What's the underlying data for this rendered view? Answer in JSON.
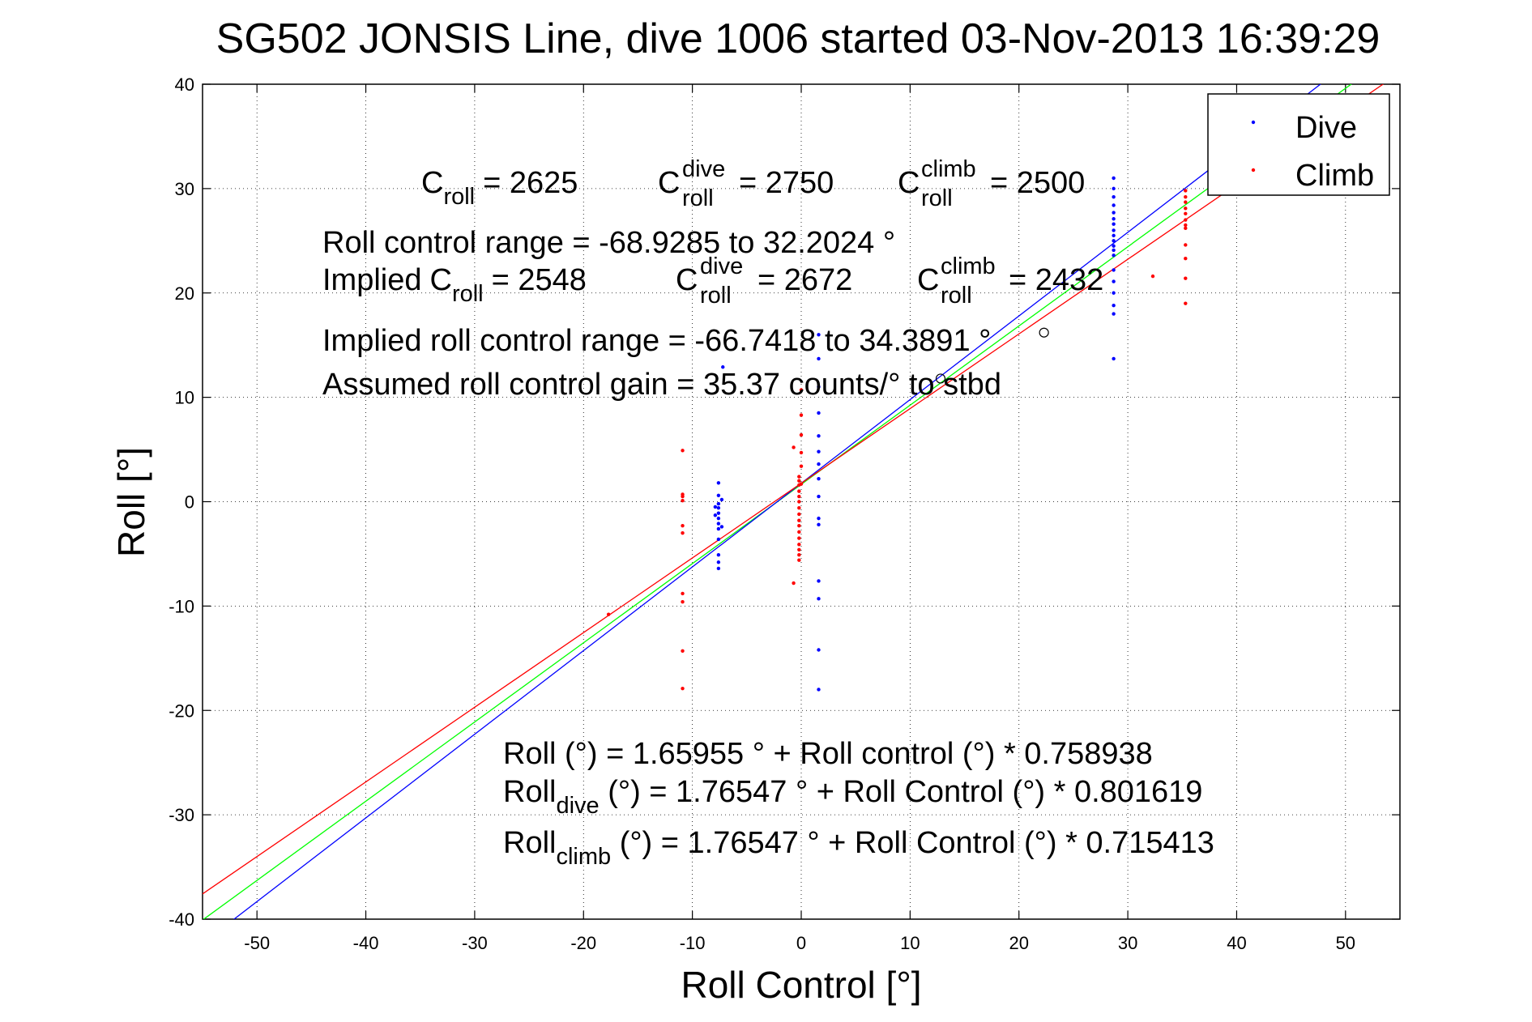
{
  "chart_data": {
    "type": "scatter",
    "title": "SG502 JONSIS Line, dive 1006 started 03-Nov-2013 16:39:29",
    "xlabel": "Roll Control [°]",
    "ylabel": "Roll [°]",
    "xlim": [
      -55,
      55
    ],
    "ylim": [
      -40,
      40
    ],
    "xticks": [
      -50,
      -40,
      -30,
      -20,
      -10,
      0,
      10,
      20,
      30,
      40,
      50
    ],
    "yticks": [
      -40,
      -30,
      -20,
      -10,
      0,
      10,
      20,
      30,
      40
    ],
    "grid": "dotted",
    "legend_position": "top-right",
    "legend": [
      {
        "label": "Dive",
        "color": "#0000ff"
      },
      {
        "label": "Climb",
        "color": "#ff0000"
      }
    ],
    "series": [
      {
        "name": "Dive",
        "color": "#0000ff",
        "points": [
          [
            -7.6,
            1.8
          ],
          [
            -7.6,
            0.6
          ],
          [
            -7.6,
            -0.2
          ],
          [
            -7.6,
            -0.6
          ],
          [
            -7.6,
            -1.1
          ],
          [
            -7.6,
            -1.6
          ],
          [
            -7.6,
            -2.1
          ],
          [
            -7.6,
            -2.6
          ],
          [
            -7.6,
            -3.6
          ],
          [
            -7.6,
            -5.1
          ],
          [
            -7.6,
            -5.8
          ],
          [
            -7.6,
            -6.4
          ],
          [
            -7.9,
            -0.5
          ],
          [
            -7.9,
            -1.3
          ],
          [
            -7.3,
            0.2
          ],
          [
            -7.3,
            -2.4
          ],
          [
            -7.2,
            12.9
          ],
          [
            1.6,
            16.0
          ],
          [
            1.6,
            13.7
          ],
          [
            1.6,
            11.0
          ],
          [
            1.6,
            8.5
          ],
          [
            1.6,
            6.3
          ],
          [
            1.6,
            4.8
          ],
          [
            1.6,
            3.6
          ],
          [
            1.6,
            2.2
          ],
          [
            1.6,
            0.5
          ],
          [
            1.6,
            -1.6
          ],
          [
            1.6,
            -2.2
          ],
          [
            1.6,
            -7.6
          ],
          [
            1.6,
            -9.3
          ],
          [
            1.6,
            -14.2
          ],
          [
            1.6,
            -18.0
          ],
          [
            28.7,
            31.0
          ],
          [
            28.7,
            30.0
          ],
          [
            28.7,
            29.2
          ],
          [
            28.7,
            28.4
          ],
          [
            28.7,
            27.7
          ],
          [
            28.7,
            27.1
          ],
          [
            28.7,
            26.6
          ],
          [
            28.7,
            26.0
          ],
          [
            28.7,
            25.5
          ],
          [
            28.7,
            25.0
          ],
          [
            28.7,
            24.5
          ],
          [
            28.7,
            24.1
          ],
          [
            28.7,
            23.6
          ],
          [
            28.7,
            22.2
          ],
          [
            28.7,
            21.1
          ],
          [
            28.7,
            20.0
          ],
          [
            28.7,
            18.8
          ],
          [
            28.7,
            18.0
          ],
          [
            28.7,
            13.7
          ]
        ]
      },
      {
        "name": "Climb",
        "color": "#ff0000",
        "points": [
          [
            -17.7,
            -10.8
          ],
          [
            -10.9,
            4.9
          ],
          [
            -10.9,
            0.7
          ],
          [
            -10.9,
            0.5
          ],
          [
            -10.9,
            0.1
          ],
          [
            -10.9,
            -2.3
          ],
          [
            -10.9,
            -3.0
          ],
          [
            -10.9,
            -8.8
          ],
          [
            -10.9,
            -9.6
          ],
          [
            -10.9,
            -14.3
          ],
          [
            -10.9,
            -17.9
          ],
          [
            -0.7,
            5.2
          ],
          [
            -0.7,
            -7.8
          ],
          [
            -0.2,
            2.4
          ],
          [
            -0.2,
            2.0
          ],
          [
            -0.2,
            1.6
          ],
          [
            -0.2,
            1.0
          ],
          [
            -0.2,
            0.5
          ],
          [
            -0.2,
            0.0
          ],
          [
            -0.2,
            -0.6
          ],
          [
            -0.2,
            -1.2
          ],
          [
            -0.2,
            -1.8
          ],
          [
            -0.2,
            -2.3
          ],
          [
            -0.2,
            -2.9
          ],
          [
            -0.2,
            -3.5
          ],
          [
            -0.2,
            -4.1
          ],
          [
            -0.2,
            -4.6
          ],
          [
            -0.2,
            -5.1
          ],
          [
            -0.2,
            -5.6
          ],
          [
            0.0,
            10.7
          ],
          [
            0.0,
            8.3
          ],
          [
            0.0,
            6.4
          ],
          [
            0.0,
            4.7
          ],
          [
            0.0,
            3.4
          ],
          [
            0.0,
            1.7
          ],
          [
            32.3,
            21.6
          ],
          [
            35.3,
            29.8
          ],
          [
            35.3,
            29.2
          ],
          [
            35.3,
            28.7
          ],
          [
            35.3,
            28.1
          ],
          [
            35.3,
            27.6
          ],
          [
            35.3,
            27.0
          ],
          [
            35.3,
            26.5
          ],
          [
            35.3,
            26.2
          ],
          [
            35.3,
            24.6
          ],
          [
            35.3,
            23.3
          ],
          [
            35.3,
            21.4
          ],
          [
            35.3,
            19.0
          ]
        ]
      },
      {
        "name": "",
        "color": "#000000",
        "marker": "circle",
        "points": [
          [
            22.3,
            16.2
          ],
          [
            12.8,
            11.8
          ]
        ]
      }
    ],
    "fit_lines": [
      {
        "label": "Roll",
        "color": "#00ff00",
        "intercept": 1.65955,
        "slope": 0.758938
      },
      {
        "label": "Roll dive",
        "color": "#0000ff",
        "intercept": 1.76547,
        "slope": 0.801619
      },
      {
        "label": "Roll climb",
        "color": "#ff0000",
        "intercept": 1.76547,
        "slope": 0.715413
      }
    ],
    "annotations": {
      "c_roll": {
        "base": "C",
        "sub": "roll",
        "value": "= 2625"
      },
      "c_roll_dive": {
        "base": "C",
        "sup": "dive",
        "sub": "roll",
        "value": "= 2750"
      },
      "c_roll_climb": {
        "base": "C",
        "sup": "climb",
        "sub": "roll",
        "value": "= 2500"
      },
      "range_line": "Roll control range = -68.9285 to 32.2024 °",
      "implied_prefix": "Implied",
      "implied_c_roll": {
        "base": "C",
        "sub": "roll",
        "value": "= 2548"
      },
      "implied_c_roll_dive": {
        "base": "C",
        "sup": "dive",
        "sub": "roll",
        "value": "= 2672"
      },
      "implied_c_roll_climb": {
        "base": "C",
        "sup": "climb",
        "sub": "roll",
        "value": "= 2432"
      },
      "implied_range_line": "Implied roll control range = -66.7418 to 34.3891 °",
      "gain_line": "Assumed roll control gain = 35.37 counts/° to stbd",
      "eq_all": "Roll (°) = 1.65955 ° + Roll control (°) * 0.758938",
      "eq_dive": {
        "base": "Roll",
        "sub": "dive",
        "rest": " (°) = 1.76547 ° + Roll Control (°) * 0.801619"
      },
      "eq_climb": {
        "base": "Roll",
        "sub": "climb",
        "rest": " (°) = 1.76547 ° + Roll Control (°) * 0.715413"
      }
    }
  }
}
